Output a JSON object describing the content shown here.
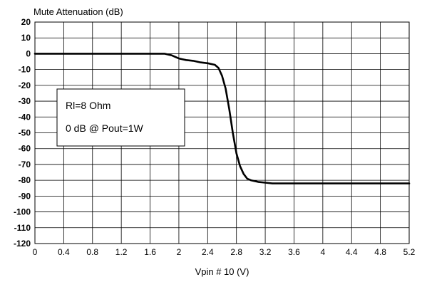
{
  "chart_data": {
    "type": "line",
    "title": "Mute Attenuation  (dB)",
    "xlabel": "Vpin # 10 (V)",
    "ylabel": "",
    "xlim": [
      0,
      5.2
    ],
    "ylim": [
      -120,
      20
    ],
    "x_ticks": [
      0,
      0.4,
      0.8,
      1.2,
      1.6,
      2,
      2.4,
      2.8,
      3.2,
      3.6,
      4,
      4.4,
      4.8,
      5.2
    ],
    "x_tick_labels": [
      "0",
      "0.4",
      "0.8",
      "1.2",
      "1.6",
      "2",
      "2.4",
      "2.8",
      "3.2",
      "3.6",
      "4",
      "4.4",
      "4.8",
      "5.2"
    ],
    "y_ticks": [
      20,
      10,
      0,
      -10,
      -20,
      -30,
      -40,
      -50,
      -60,
      -70,
      -80,
      -90,
      -100,
      -110,
      -120
    ],
    "y_tick_labels": [
      "20",
      "10",
      "0",
      "-10",
      "-20",
      "-30",
      "-40",
      "-50",
      "-60",
      "-70",
      "-80",
      "-90",
      "-100",
      "-110",
      "-120"
    ],
    "grid": true,
    "series": [
      {
        "color": "#000000",
        "x": [
          0,
          0.4,
          0.8,
          1.2,
          1.6,
          1.8,
          1.9,
          2.0,
          2.1,
          2.2,
          2.3,
          2.4,
          2.5,
          2.55,
          2.6,
          2.65,
          2.7,
          2.75,
          2.8,
          2.85,
          2.9,
          2.95,
          3.0,
          3.1,
          3.2,
          3.3,
          3.4,
          3.6,
          4.0,
          4.4,
          4.8,
          5.2
        ],
        "y": [
          0,
          0,
          0,
          0,
          0,
          0,
          -1,
          -3,
          -4,
          -4.5,
          -5.5,
          -6,
          -7,
          -9,
          -14,
          -22,
          -35,
          -50,
          -63,
          -71,
          -76,
          -79,
          -80,
          -81,
          -81.5,
          -82,
          -82,
          -82,
          -82,
          -82,
          -82,
          -82
        ]
      }
    ],
    "annotations": [
      "Rl=8 Ohm",
      "0 dB @ Pout=1W"
    ]
  }
}
